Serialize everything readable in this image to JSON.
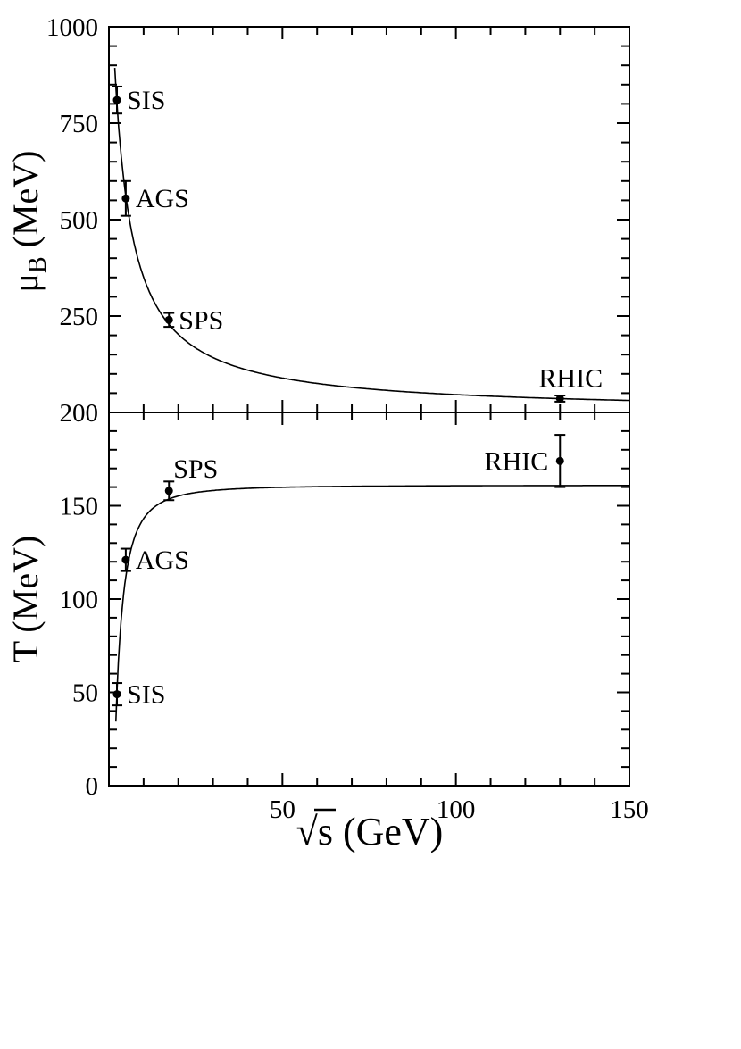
{
  "figure": {
    "background": "#ffffff",
    "ink_color": "#000000"
  },
  "x_axis": {
    "label": "√s (GeV)",
    "range": [
      0,
      150
    ],
    "tick_labels": [
      50,
      100,
      150
    ],
    "major_step": 50,
    "minor_step": 10
  },
  "chart_data": [
    {
      "type": "scatter",
      "panel": "top",
      "title": "",
      "xlabel": "√s (GeV)",
      "ylabel": "μ_B (MeV)",
      "ylabel_mu": "μ",
      "ylabel_sub": "B",
      "ylabel_units": " (MeV)",
      "xlim": [
        0,
        150
      ],
      "ylim": [
        0,
        1000
      ],
      "ytick_labels": [
        250,
        500,
        750,
        1000
      ],
      "ytick_major_step": 250,
      "ytick_minor_step": 50,
      "grid": false,
      "points": [
        {
          "label": "SIS",
          "x": 2.32,
          "y": 810,
          "yerr": 35,
          "label_pos": "right"
        },
        {
          "label": "AGS",
          "x": 4.86,
          "y": 555,
          "yerr": 45,
          "label_pos": "right"
        },
        {
          "label": "SPS",
          "x": 17.3,
          "y": 240,
          "yerr": 18,
          "label_pos": "right"
        },
        {
          "label": "RHIC",
          "x": 130,
          "y": 36,
          "yerr": 8,
          "label_pos": "above"
        }
      ],
      "curve": {
        "description": "chemical freeze-out fit: muB(sqrt_s) = a / (1 + b*sqrt_s), in MeV",
        "a": 1308,
        "b": 0.273,
        "x_start": 1.7,
        "x_end": 150
      }
    },
    {
      "type": "scatter",
      "panel": "bottom",
      "title": "",
      "xlabel": "√s (GeV)",
      "ylabel": "T (MeV)",
      "xlim": [
        0,
        150
      ],
      "ylim": [
        0,
        200
      ],
      "ytick_labels": [
        0,
        50,
        100,
        150,
        200
      ],
      "ytick_major_step": 50,
      "ytick_minor_step": 10,
      "grid": false,
      "points": [
        {
          "label": "SIS",
          "x": 2.32,
          "y": 49,
          "yerr": 6,
          "label_pos": "right"
        },
        {
          "label": "AGS",
          "x": 4.86,
          "y": 121,
          "yerr": 6,
          "label_pos": "right"
        },
        {
          "label": "SPS",
          "x": 17.3,
          "y": 158,
          "yerr": 5,
          "label_pos": "above-right"
        },
        {
          "label": "RHIC",
          "x": 130,
          "y": 174,
          "yerr": 14,
          "label_pos": "left"
        }
      ],
      "curve": {
        "description": "T(sqrt_s) = Tlim - c2*muB^2 - c4*muB^4, muB in GeV taken from top-panel fit",
        "Tlim": 161,
        "c2": 139,
        "c4": 53,
        "muB_a": 1.308,
        "muB_b": 0.273,
        "x_start": 2.0,
        "x_end": 150
      }
    }
  ]
}
